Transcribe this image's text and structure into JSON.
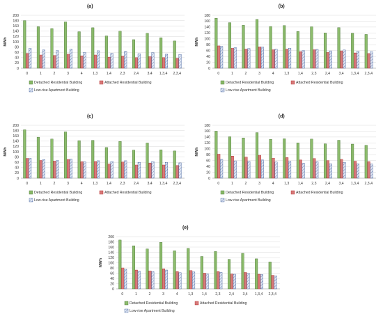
{
  "colors": {
    "detached": "#8fbf6f",
    "detached_edge": "#3f6b2a",
    "attached": "#e8a0a0",
    "attached_edge": "#b02020",
    "lowrise": "#dfe6f3",
    "lowrise_edge": "#3a5a9a"
  },
  "chart_data": [
    {
      "type": "bar",
      "title": "(a)",
      "ylabel": "MWh",
      "xlabel": "",
      "categories": [
        "0",
        "1",
        "2",
        "3",
        "4",
        "1,3",
        "1,4",
        "2,3",
        "2,4",
        "3,4",
        "1,3,4",
        "2,3,4"
      ],
      "ylim": [
        0,
        200
      ],
      "yticks": [
        0,
        20,
        40,
        60,
        80,
        100,
        120,
        140,
        160,
        180,
        200
      ],
      "grid": true,
      "legend_position": "bottom",
      "series": [
        {
          "name": "Detached Residential Building",
          "values": [
            180,
            157,
            150,
            175,
            138,
            153,
            122,
            140,
            108,
            132,
            115,
            103
          ]
        },
        {
          "name": "Attached Residential Building",
          "values": [
            56,
            50,
            48,
            53,
            47,
            50,
            42,
            46,
            40,
            44,
            40,
            38
          ]
        },
        {
          "name": "Low-rise Apartment Building",
          "values": [
            75,
            69,
            67,
            72,
            60,
            66,
            56,
            64,
            55,
            59,
            53,
            52
          ]
        }
      ]
    },
    {
      "type": "bar",
      "title": "(b)",
      "ylabel": "MWh",
      "xlabel": "",
      "categories": [
        "0",
        "1",
        "2",
        "3",
        "4",
        "1,3",
        "1,4",
        "2,3",
        "2,4",
        "3,4",
        "1,3,4",
        "2,3,4"
      ],
      "ylim": [
        0,
        180
      ],
      "yticks": [
        0,
        20,
        40,
        60,
        80,
        100,
        120,
        140,
        160,
        180
      ],
      "grid": true,
      "legend_position": "bottom",
      "series": [
        {
          "name": "Detached Residential Building",
          "values": [
            170,
            155,
            146,
            166,
            142,
            145,
            125,
            141,
            120,
            138,
            119,
            115
          ]
        },
        {
          "name": "Attached Residential Building",
          "values": [
            76,
            68,
            65,
            73,
            63,
            65,
            56,
            63,
            54,
            59,
            52,
            50
          ]
        },
        {
          "name": "Low-rise Apartment Building",
          "values": [
            74,
            70,
            67,
            72,
            65,
            68,
            60,
            64,
            59,
            62,
            58,
            56
          ]
        }
      ]
    },
    {
      "type": "bar",
      "title": "(c)",
      "ylabel": "MWh",
      "xlabel": "",
      "categories": [
        "0",
        "1",
        "2",
        "3",
        "4",
        "1,3",
        "1,4",
        "2,3",
        "2,4",
        "3,4",
        "1,3,4",
        "2,3,4"
      ],
      "ylim": [
        0,
        200
      ],
      "yticks": [
        0,
        20,
        40,
        60,
        80,
        100,
        120,
        140,
        160,
        180,
        200
      ],
      "grid": true,
      "legend_position": "bottom",
      "series": [
        {
          "name": "Detached Residential Building",
          "values": [
            183,
            155,
            148,
            175,
            142,
            143,
            116,
            139,
            106,
            133,
            107,
            103
          ]
        },
        {
          "name": "Attached Residential Building",
          "values": [
            75,
            67,
            65,
            71,
            62,
            63,
            54,
            61,
            50,
            57,
            50,
            48
          ]
        },
        {
          "name": "Low-rise Apartment Building",
          "values": [
            75,
            70,
            67,
            72,
            62,
            66,
            63,
            66,
            60,
            63,
            60,
            58
          ]
        }
      ]
    },
    {
      "type": "bar",
      "title": "(d)",
      "ylabel": "MWh",
      "xlabel": "",
      "categories": [
        "0",
        "1",
        "2",
        "3",
        "4",
        "1,3",
        "1,4",
        "2,3",
        "2,4",
        "3,4",
        "1,3,4",
        "2,3,4"
      ],
      "ylim": [
        0,
        180
      ],
      "yticks": [
        0,
        20,
        40,
        60,
        80,
        100,
        120,
        140,
        160,
        180
      ],
      "grid": true,
      "legend_position": "bottom",
      "series": [
        {
          "name": "Detached Residential Building",
          "values": [
            160,
            141,
            137,
            155,
            132,
            134,
            120,
            133,
            117,
            129,
            116,
            112
          ]
        },
        {
          "name": "Attached Residential Building",
          "values": [
            82,
            75,
            72,
            78,
            68,
            70,
            62,
            67,
            60,
            64,
            58,
            56
          ]
        },
        {
          "name": "Low-rise Apartment Building",
          "values": [
            64,
            59,
            57,
            62,
            55,
            57,
            51,
            56,
            49,
            54,
            49,
            48
          ]
        }
      ]
    },
    {
      "type": "bar",
      "title": "(e)",
      "ylabel": "MWh",
      "xlabel": "",
      "categories": [
        "0",
        "1",
        "2",
        "3",
        "4",
        "1,3",
        "1,4",
        "2,3",
        "2,4",
        "3,4",
        "1,3,4",
        "2,3,4"
      ],
      "ylim": [
        0,
        200
      ],
      "yticks": [
        0,
        20,
        40,
        60,
        80,
        100,
        120,
        140,
        160,
        180,
        200
      ],
      "grid": true,
      "legend_position": "bottom",
      "series": [
        {
          "name": "Detached Residential Building",
          "values": [
            187,
            165,
            153,
            178,
            146,
            155,
            124,
            143,
            113,
            136,
            115,
            103
          ]
        },
        {
          "name": "Attached Residential Building",
          "values": [
            80,
            72,
            69,
            77,
            66,
            70,
            60,
            66,
            57,
            63,
            56,
            52
          ]
        },
        {
          "name": "Low-rise Apartment Building",
          "values": [
            75,
            68,
            66,
            72,
            62,
            65,
            57,
            63,
            56,
            60,
            55,
            50
          ]
        }
      ]
    }
  ]
}
